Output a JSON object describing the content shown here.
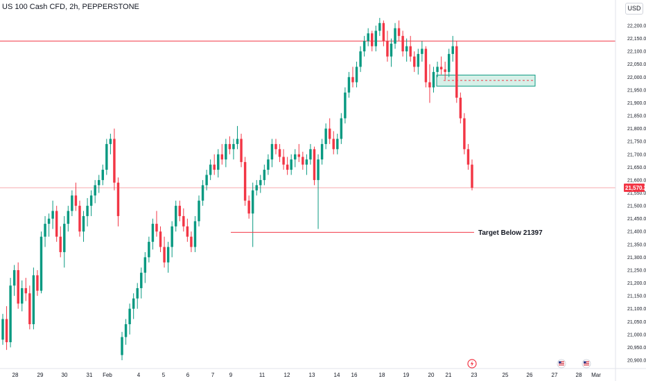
{
  "header": {
    "title": "US 100 Cash CFD, 2h, PEPPERSTONE",
    "currency": "USD"
  },
  "colors": {
    "up": "#089981",
    "down": "#f23645",
    "resistance": "#f23645",
    "price_line": "#f23645",
    "zone_fill": "#d6f0e8",
    "zone_border": "#089981",
    "target_line": "#f23645"
  },
  "chart_data": {
    "type": "candlestick",
    "symbol": "US 100 Cash CFD",
    "timeframe": "2h",
    "source": "PEPPERSTONE",
    "y_axis": {
      "min": 20895,
      "max": 22235,
      "ticks": [
        22200,
        22150,
        22100,
        22050,
        22000,
        21950,
        21900,
        21850,
        21800,
        21750,
        21700,
        21650,
        21600,
        21550,
        21500,
        21450,
        21400,
        21350,
        21300,
        21250,
        21200,
        21150,
        21100,
        21050,
        21000,
        20950,
        20900
      ],
      "tick_labels": [
        "22,200.0",
        "22,150.0",
        "22,100.0",
        "22,050.0",
        "22,000.0",
        "21,950.0",
        "21,900.0",
        "21,850.0",
        "21,800.0",
        "21,750.0",
        "21,700.0",
        "21,650.0",
        "21,600.0",
        "21,550.0",
        "21,500.0",
        "21,450.0",
        "21,400.0",
        "21,350.0",
        "21,300.0",
        "21,250.0",
        "21,200.0",
        "21,150.0",
        "21,100.0",
        "21,050.0",
        "21,000.0",
        "20,950.0",
        "20,900.0"
      ]
    },
    "x_axis_labels": [
      "28",
      "29",
      "30",
      "31",
      "Feb",
      "4",
      "5",
      "6",
      "7",
      "9",
      "11",
      "12",
      "13",
      "14",
      "16",
      "18",
      "19",
      "20",
      "21",
      "23",
      "25",
      "26",
      "27",
      "28",
      "Mar"
    ],
    "current_price": 21570.2,
    "current_price_label": "21,570.2",
    "resistance_level": 22140,
    "target_level": 21397,
    "target_label": "Target Below 21397",
    "supply_zone": {
      "low": 21965,
      "high": 22008,
      "mid": 21987
    },
    "series": [
      {
        "name": "",
        "values": [
          [
            20980,
            21080,
            20960,
            21060
          ],
          [
            21060,
            21110,
            20940,
            20970
          ],
          [
            20970,
            21220,
            20950,
            21190
          ],
          [
            21190,
            21270,
            21150,
            21250
          ],
          [
            21250,
            21280,
            21100,
            21120
          ],
          [
            21120,
            21210,
            21090,
            21180
          ],
          [
            21180,
            21220,
            21130,
            21160
          ],
          [
            21160,
            21190,
            21020,
            21040
          ],
          [
            21040,
            21260,
            21020,
            21230
          ],
          [
            21230,
            21250,
            21150,
            21170
          ],
          [
            21170,
            21400,
            21160,
            21380
          ],
          [
            21380,
            21460,
            21340,
            21430
          ],
          [
            21430,
            21470,
            21380,
            21450
          ],
          [
            21450,
            21520,
            21410,
            21480
          ],
          [
            21480,
            21500,
            21360,
            21380
          ],
          [
            21380,
            21420,
            21300,
            21320
          ],
          [
            21320,
            21460,
            21260,
            21430
          ],
          [
            21430,
            21500,
            21400,
            21480
          ],
          [
            21480,
            21560,
            21460,
            21540
          ],
          [
            21540,
            21590,
            21480,
            21500
          ],
          [
            21500,
            21520,
            21380,
            21400
          ],
          [
            21400,
            21480,
            21360,
            21460
          ],
          [
            21460,
            21530,
            21420,
            21500
          ],
          [
            21500,
            21560,
            21460,
            21540
          ],
          [
            21540,
            21600,
            21510,
            21580
          ],
          [
            21580,
            21620,
            21550,
            21600
          ],
          [
            21600,
            21660,
            21580,
            21640
          ],
          [
            21640,
            21760,
            21620,
            21740
          ],
          [
            21740,
            21780,
            21700,
            21760
          ],
          [
            21760,
            21800,
            21560,
            21590
          ],
          [
            21590,
            21610,
            21420,
            21460
          ],
          [
            20920,
            21010,
            20900,
            20990
          ],
          [
            20990,
            21060,
            20960,
            21040
          ],
          [
            21040,
            21120,
            21000,
            21100
          ],
          [
            21100,
            21160,
            21060,
            21140
          ],
          [
            21140,
            21200,
            21100,
            21180
          ],
          [
            21180,
            21260,
            21140,
            21240
          ],
          [
            21240,
            21320,
            21200,
            21300
          ],
          [
            21300,
            21380,
            21280,
            21360
          ],
          [
            21360,
            21450,
            21330,
            21430
          ],
          [
            21430,
            21480,
            21380,
            21400
          ],
          [
            21400,
            21420,
            21320,
            21340
          ],
          [
            21340,
            21380,
            21260,
            21280
          ],
          [
            21280,
            21360,
            21240,
            21340
          ],
          [
            21340,
            21440,
            21300,
            21420
          ],
          [
            21420,
            21520,
            21400,
            21500
          ],
          [
            21500,
            21520,
            21440,
            21460
          ],
          [
            21460,
            21490,
            21400,
            21420
          ],
          [
            21420,
            21450,
            21360,
            21380
          ],
          [
            21380,
            21400,
            21320,
            21340
          ],
          [
            21340,
            21460,
            21320,
            21440
          ],
          [
            21440,
            21540,
            21420,
            21520
          ],
          [
            21520,
            21600,
            21500,
            21580
          ],
          [
            21580,
            21640,
            21560,
            21620
          ],
          [
            21620,
            21680,
            21600,
            21660
          ],
          [
            21660,
            21700,
            21620,
            21640
          ],
          [
            21640,
            21720,
            21610,
            21700
          ],
          [
            21700,
            21740,
            21660,
            21680
          ],
          [
            21680,
            21760,
            21650,
            21740
          ],
          [
            21740,
            21770,
            21700,
            21720
          ],
          [
            21720,
            21760,
            21680,
            21740
          ],
          [
            21740,
            21810,
            21720,
            21760
          ],
          [
            21760,
            21780,
            21650,
            21670
          ],
          [
            21670,
            21690,
            21500,
            21520
          ],
          [
            21520,
            21540,
            21450,
            21470
          ],
          [
            21470,
            21590,
            21340,
            21560
          ],
          [
            21560,
            21600,
            21540,
            21580
          ],
          [
            21580,
            21620,
            21550,
            21600
          ],
          [
            21600,
            21660,
            21580,
            21640
          ],
          [
            21640,
            21700,
            21620,
            21680
          ],
          [
            21680,
            21760,
            21650,
            21740
          ],
          [
            21740,
            21760,
            21700,
            21720
          ],
          [
            21720,
            21740,
            21670,
            21690
          ],
          [
            21690,
            21720,
            21640,
            21660
          ],
          [
            21660,
            21690,
            21620,
            21640
          ],
          [
            21640,
            21700,
            21620,
            21680
          ],
          [
            21680,
            21720,
            21650,
            21700
          ],
          [
            21700,
            21740,
            21670,
            21690
          ],
          [
            21690,
            21710,
            21640,
            21660
          ],
          [
            21660,
            21700,
            21620,
            21680
          ],
          [
            21680,
            21740,
            21660,
            21720
          ],
          [
            21720,
            21730,
            21580,
            21600
          ],
          [
            21600,
            21700,
            21410,
            21680
          ],
          [
            21680,
            21760,
            21660,
            21740
          ],
          [
            21740,
            21820,
            21720,
            21800
          ],
          [
            21800,
            21840,
            21740,
            21760
          ],
          [
            21760,
            21790,
            21700,
            21720
          ],
          [
            21720,
            21780,
            21700,
            21760
          ],
          [
            21760,
            21860,
            21740,
            21840
          ],
          [
            21840,
            21960,
            21820,
            21940
          ],
          [
            21940,
            22020,
            21920,
            22000
          ],
          [
            22000,
            22040,
            21960,
            21980
          ],
          [
            21980,
            22060,
            21960,
            22040
          ],
          [
            22040,
            22120,
            22020,
            22100
          ],
          [
            22100,
            22160,
            22080,
            22140
          ],
          [
            22140,
            22190,
            22120,
            22170
          ],
          [
            22170,
            22180,
            22100,
            22120
          ],
          [
            22120,
            22200,
            22100,
            22180
          ],
          [
            22180,
            22230,
            22160,
            22210
          ],
          [
            22210,
            22220,
            22120,
            22140
          ],
          [
            22140,
            22180,
            22060,
            22080
          ],
          [
            22080,
            22150,
            22040,
            22130
          ],
          [
            22130,
            22210,
            22110,
            22190
          ],
          [
            22190,
            22220,
            22140,
            22160
          ],
          [
            22160,
            22180,
            22080,
            22100
          ],
          [
            22100,
            22150,
            22060,
            22120
          ],
          [
            22120,
            22160,
            22060,
            22080
          ],
          [
            22080,
            22100,
            22020,
            22040
          ],
          [
            22040,
            22110,
            22010,
            22090
          ],
          [
            22090,
            22140,
            22060,
            22110
          ],
          [
            22110,
            22120,
            21960,
            21980
          ],
          [
            21980,
            22050,
            21900,
            21960
          ],
          [
            21960,
            22040,
            21940,
            22020
          ],
          [
            22020,
            22060,
            22000,
            22040
          ],
          [
            22040,
            22080,
            22010,
            22030
          ],
          [
            22030,
            22060,
            21990,
            22020
          ],
          [
            22020,
            22110,
            22000,
            22090
          ],
          [
            22090,
            22160,
            22060,
            22120
          ],
          [
            22120,
            22140,
            21900,
            21920
          ],
          [
            21920,
            21940,
            21820,
            21840
          ],
          [
            21840,
            21860,
            21700,
            21720
          ],
          [
            21720,
            21740,
            21640,
            21660
          ],
          [
            21660,
            21680,
            21560,
            21570
          ]
        ]
      }
    ]
  },
  "events": {
    "flash_icon": "lightning-icon",
    "flag_icons": [
      "us-flag-icon",
      "us-flag-icon"
    ]
  }
}
